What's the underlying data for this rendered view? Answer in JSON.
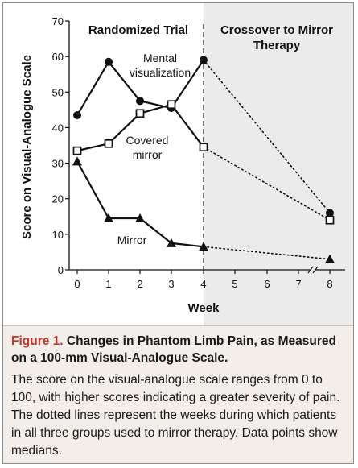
{
  "chart_data": {
    "type": "line",
    "ylabel": "Score on Visual-Analogue Scale",
    "xlabel": "Week",
    "ylim": [
      0,
      70
    ],
    "y_ticks": [
      0,
      10,
      20,
      30,
      40,
      50,
      60,
      70
    ],
    "x_ticks": [
      0,
      1,
      2,
      3,
      4,
      5,
      6,
      7,
      8
    ],
    "x_axis_break_after": 7,
    "phases": [
      {
        "label": "Randomized Trial",
        "x_range": [
          0,
          4
        ],
        "shaded": false
      },
      {
        "label": "Crossover to Mirror Therapy",
        "x_range": [
          4,
          8
        ],
        "shaded": true
      }
    ],
    "series": [
      {
        "name": "Mental visualization",
        "marker": "filled-circle",
        "x": [
          0,
          1,
          2,
          3,
          4
        ],
        "values": [
          43.5,
          58.5,
          47.5,
          45.5,
          59
        ],
        "crossover_x": [
          4,
          8
        ],
        "crossover_values": [
          59,
          16
        ],
        "label_lines": [
          "Mental",
          "visualization"
        ]
      },
      {
        "name": "Covered mirror",
        "marker": "open-square",
        "x": [
          0,
          1,
          2,
          3,
          4
        ],
        "values": [
          33.5,
          35.5,
          44,
          46.5,
          34.5
        ],
        "crossover_x": [
          4,
          8
        ],
        "crossover_values": [
          34.5,
          14
        ],
        "label_lines": [
          "Covered",
          "mirror"
        ]
      },
      {
        "name": "Mirror",
        "marker": "filled-triangle",
        "x": [
          0,
          1,
          2,
          3,
          4
        ],
        "values": [
          30.5,
          14.5,
          14.5,
          7.5,
          6.5
        ],
        "crossover_x": [
          4,
          8
        ],
        "crossover_values": [
          6.5,
          3
        ],
        "label_lines": [
          "Mirror"
        ]
      }
    ]
  },
  "caption": {
    "label": "Figure 1.",
    "title": "Changes in Phantom Limb Pain, as Measured on a 100-mm Visual-Analogue Scale.",
    "body": "The score on the visual-analogue scale ranges from 0 to 100, with higher scores indicating a greater severity of pain. The dotted lines represent the weeks during which patients in all three groups used to mirror therapy. Data points show medians."
  },
  "colors": {
    "line": "#111111",
    "shaded_phase": "#ebebeb",
    "caption_background": "#f3eeea",
    "caption_label": "#c0392b"
  }
}
